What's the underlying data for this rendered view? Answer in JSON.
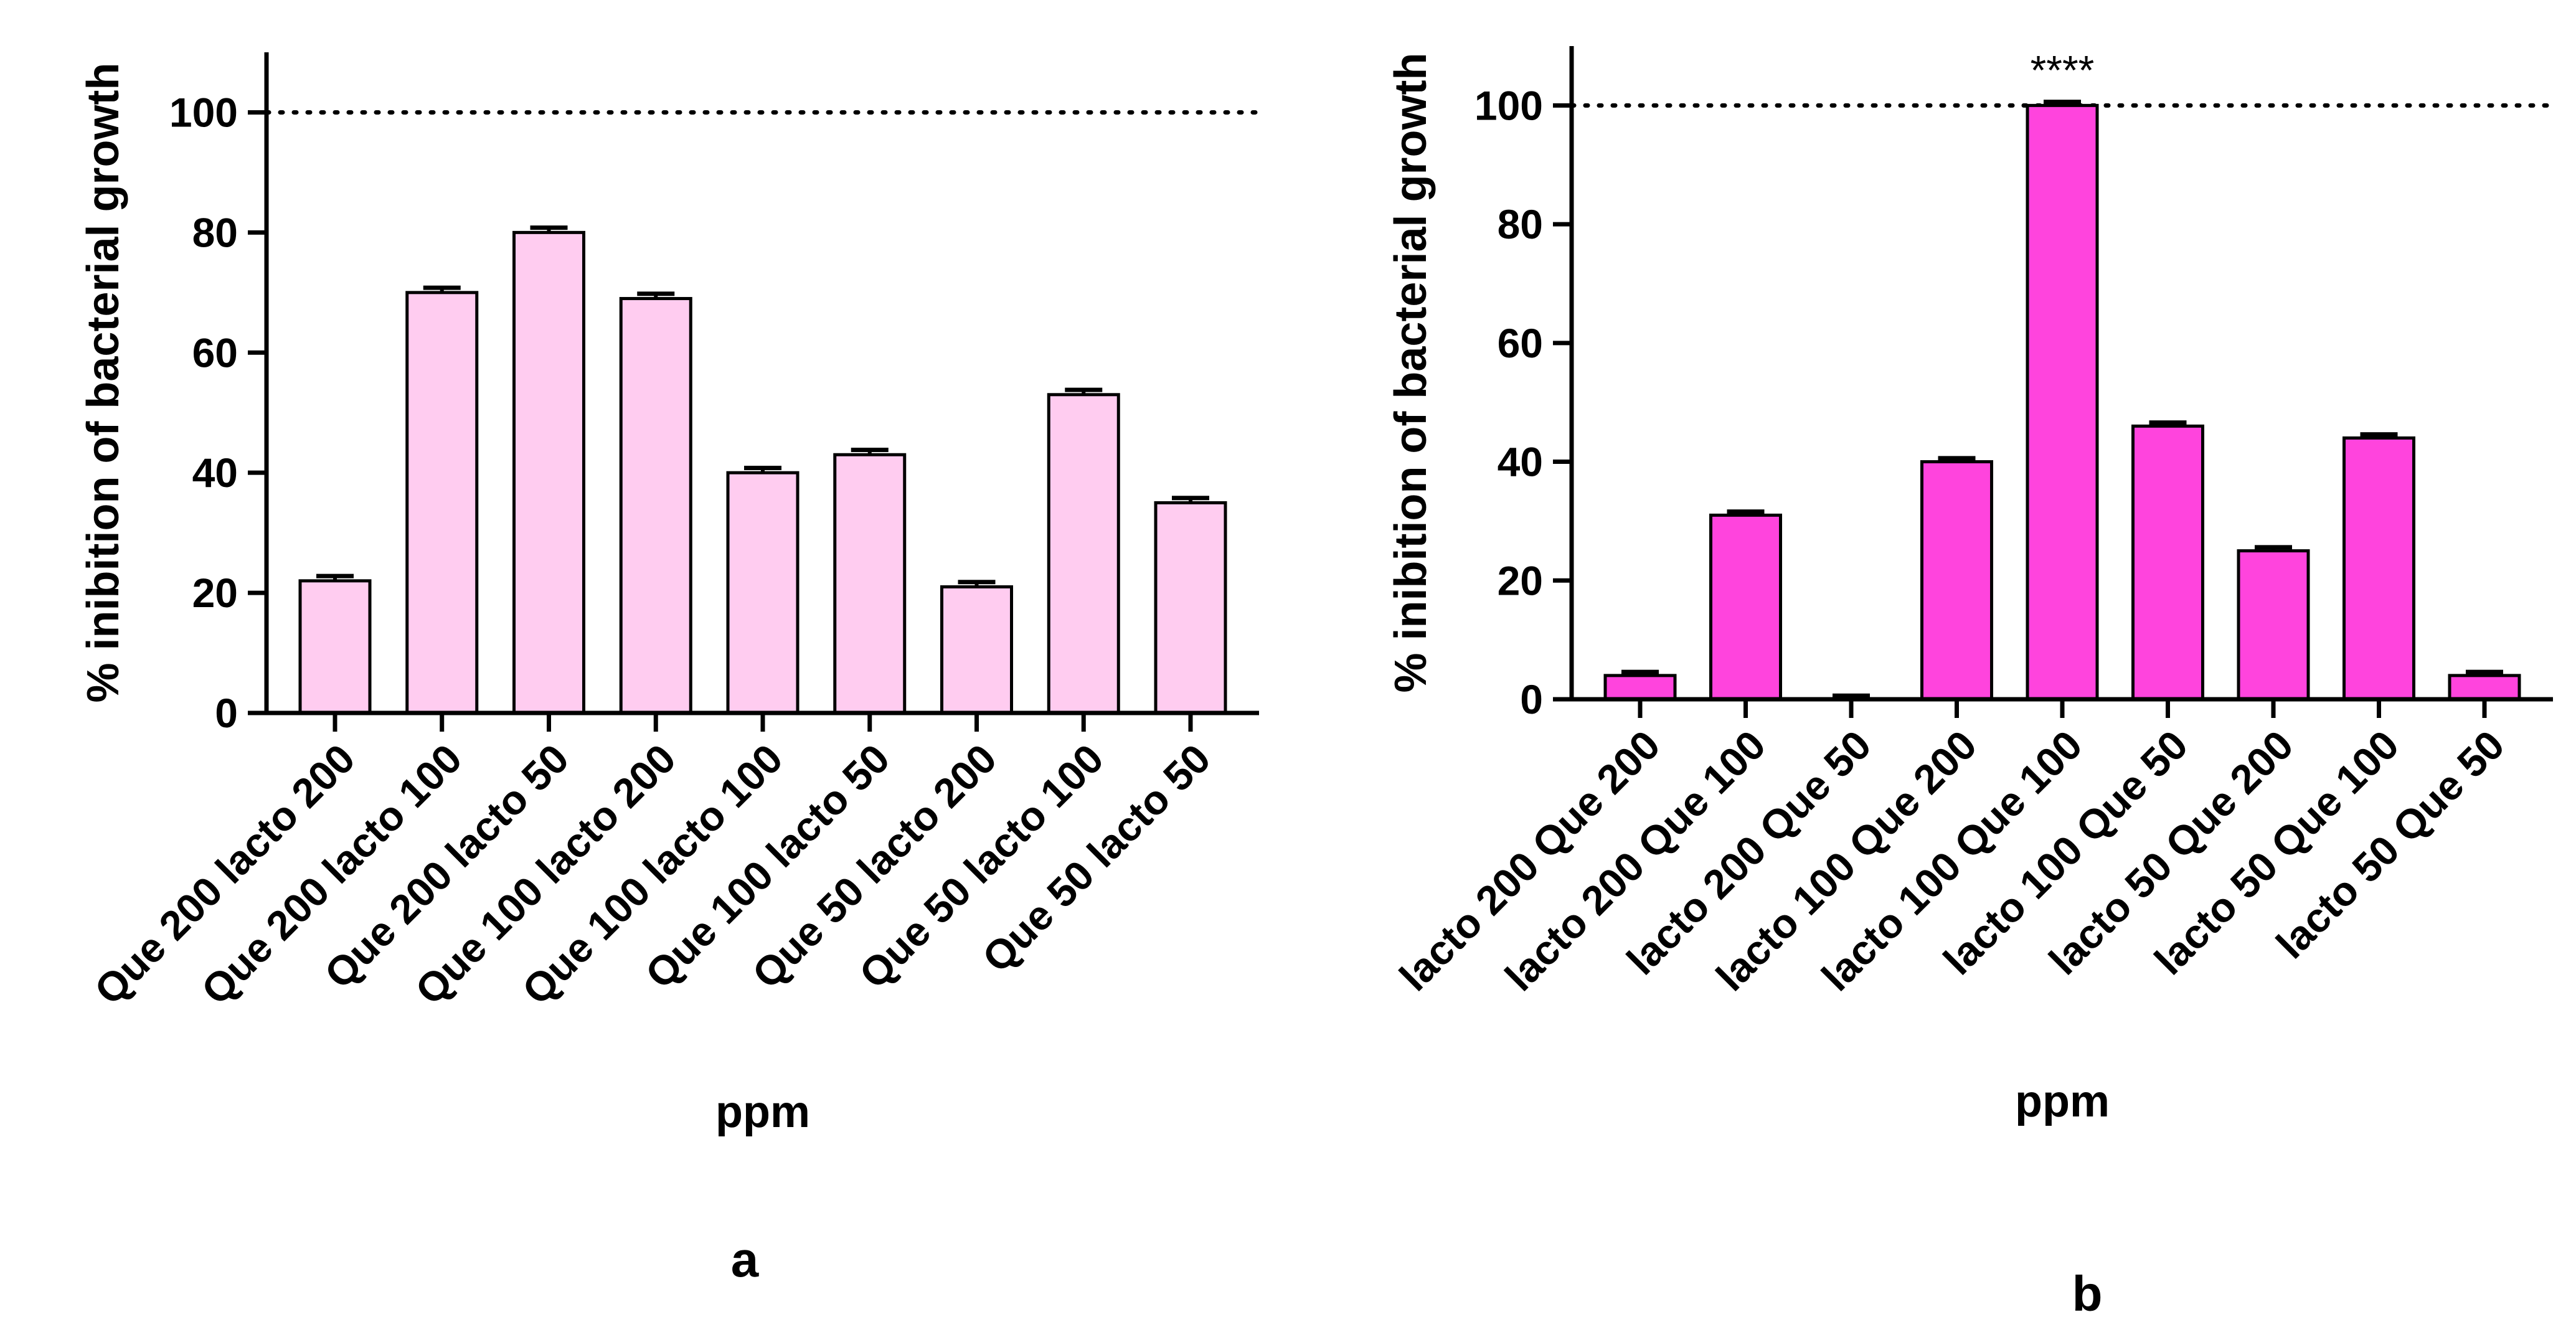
{
  "colors": {
    "panel_a_bar": "#ffccf0",
    "panel_b_bar": "#ff44dd",
    "stroke": "#000000"
  },
  "chart_data": [
    {
      "type": "bar",
      "panel_label": "a",
      "title": "",
      "xlabel": "ppm",
      "ylabel": "% inibition of bacterial growth",
      "ylim": [
        0,
        110
      ],
      "yticks": [
        0,
        20,
        40,
        60,
        80,
        100
      ],
      "reference_line": 100,
      "categories": [
        "Que 200 lacto 200",
        "Que 200 lacto 100",
        "Que 200 lacto 50",
        "Que 100 lacto 200",
        "Que 100 lacto 100",
        "Que 100 lacto 50",
        "Que 50 lacto 200",
        "Que 50 lacto 100",
        "Que 50 lacto 50"
      ],
      "values": [
        22,
        70,
        80,
        69,
        40,
        43,
        21,
        53,
        35
      ],
      "errors": [
        0.8,
        0.8,
        0.8,
        0.8,
        0.8,
        0.8,
        0.8,
        0.8,
        0.8
      ],
      "annotations": []
    },
    {
      "type": "bar",
      "panel_label": "b",
      "title": "",
      "xlabel": "ppm",
      "ylabel": "% inibition of bacterial growth",
      "ylim": [
        0,
        110
      ],
      "yticks": [
        0,
        20,
        40,
        60,
        80,
        100
      ],
      "reference_line": 100,
      "categories": [
        "lacto 200 Que 200",
        "lacto 200 Que 100",
        "lacto 200 Que 50",
        "lacto 100 Que 200",
        "lacto 100 Que 100",
        "lacto 100 Que 50",
        "lacto 50 Que 200",
        "lacto 50 Que 100",
        "lacto 50 Que 50"
      ],
      "values": [
        4,
        31,
        0,
        40,
        100,
        46,
        25,
        44,
        4
      ],
      "errors": [
        0.6,
        0.6,
        0.6,
        0.6,
        0.6,
        0.6,
        0.6,
        0.6,
        0.6
      ],
      "annotations": [
        {
          "category_index": 4,
          "text": "****"
        }
      ]
    }
  ]
}
